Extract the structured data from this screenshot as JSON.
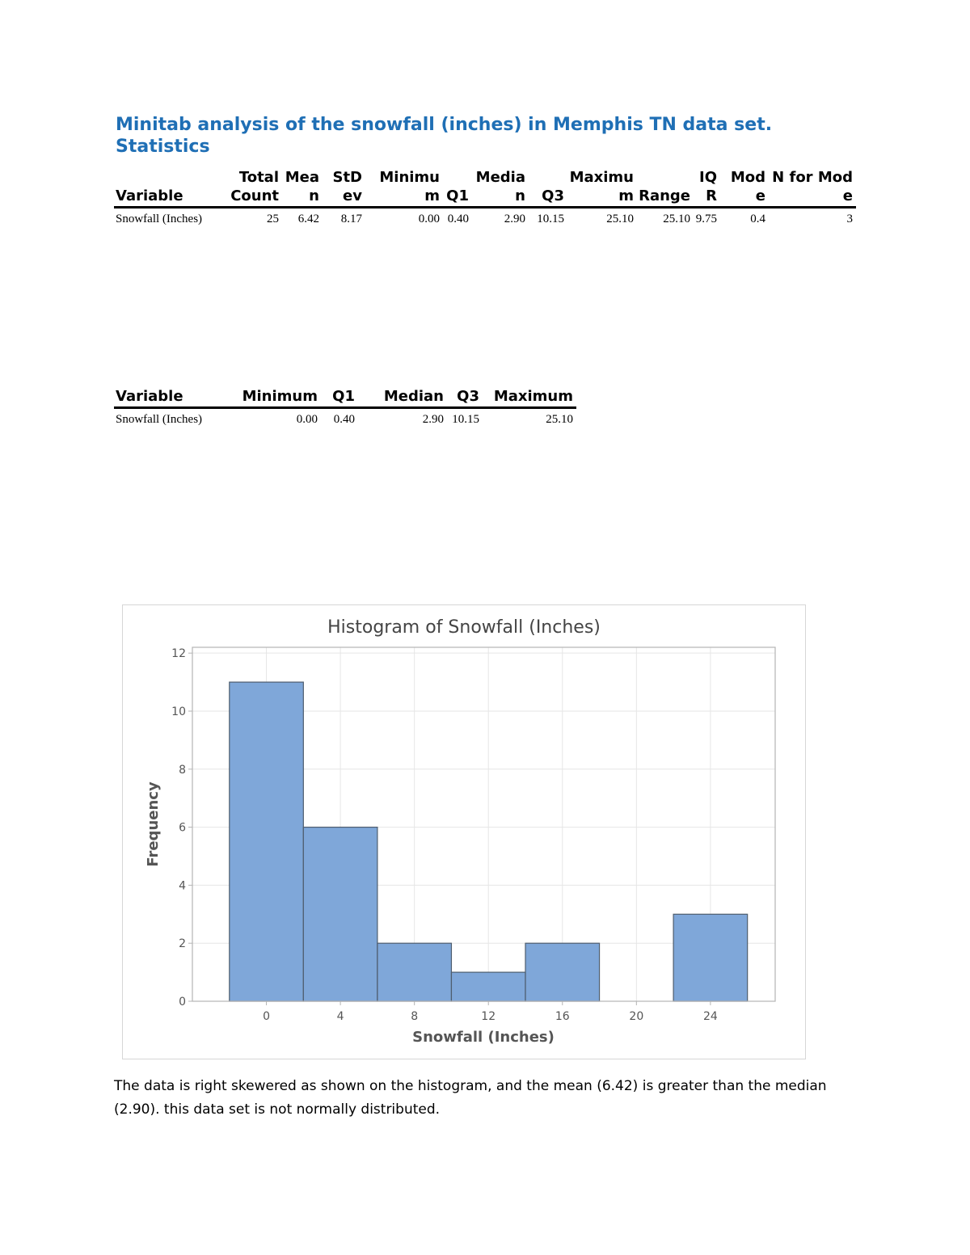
{
  "title_line1": "Minitab analysis of the snowfall (inches) in Memphis TN data set.",
  "title_line2": "Statistics",
  "table1": {
    "headers": [
      "Variable",
      "Total Count",
      "Mean",
      "StDev",
      "Minimum",
      "Q1",
      "Median",
      "Q3",
      "Maximum",
      "Range",
      "IQR",
      "Mode",
      "N for Mode"
    ],
    "row": [
      "Snowfall (Inches)",
      "25",
      "6.42",
      "8.17",
      "0.00",
      "0.40",
      "2.90",
      "10.15",
      "25.10",
      "25.10",
      "9.75",
      "0.4",
      "3"
    ]
  },
  "table2": {
    "headers": [
      "Variable",
      "Minimum",
      "Q1",
      "Median",
      "Q3",
      "Maximum"
    ],
    "row": [
      "Snowfall (Inches)",
      "0.00",
      "0.40",
      "2.90",
      "10.15",
      "25.10"
    ]
  },
  "conclusion": "The data is right skewered as shown on the histogram, and the mean (6.42) is greater than the median (2.90). this data set is not normally distributed.",
  "chart_data": {
    "type": "bar",
    "title": "Histogram of Snowfall (Inches)",
    "xlabel": "Snowfall (Inches)",
    "ylabel": "Frequency",
    "bin_width": 4,
    "bin_centers": [
      0,
      4,
      8,
      12,
      16,
      20,
      24
    ],
    "values": [
      11,
      6,
      2,
      1,
      2,
      0,
      3
    ],
    "x_ticks": [
      "0",
      "4",
      "8",
      "12",
      "16",
      "20",
      "24"
    ],
    "y_ticks": [
      "0",
      "2",
      "4",
      "6",
      "8",
      "10",
      "12"
    ],
    "xlim": [
      -4,
      27.5
    ],
    "ylim": [
      0,
      12.2
    ],
    "grid": true,
    "colors": {
      "bar": "#7fa7d9",
      "bar_edge": "#4e5d6e",
      "grid": "#e6e6e6",
      "frame": "#b4b4b4",
      "text": "#555555"
    }
  }
}
